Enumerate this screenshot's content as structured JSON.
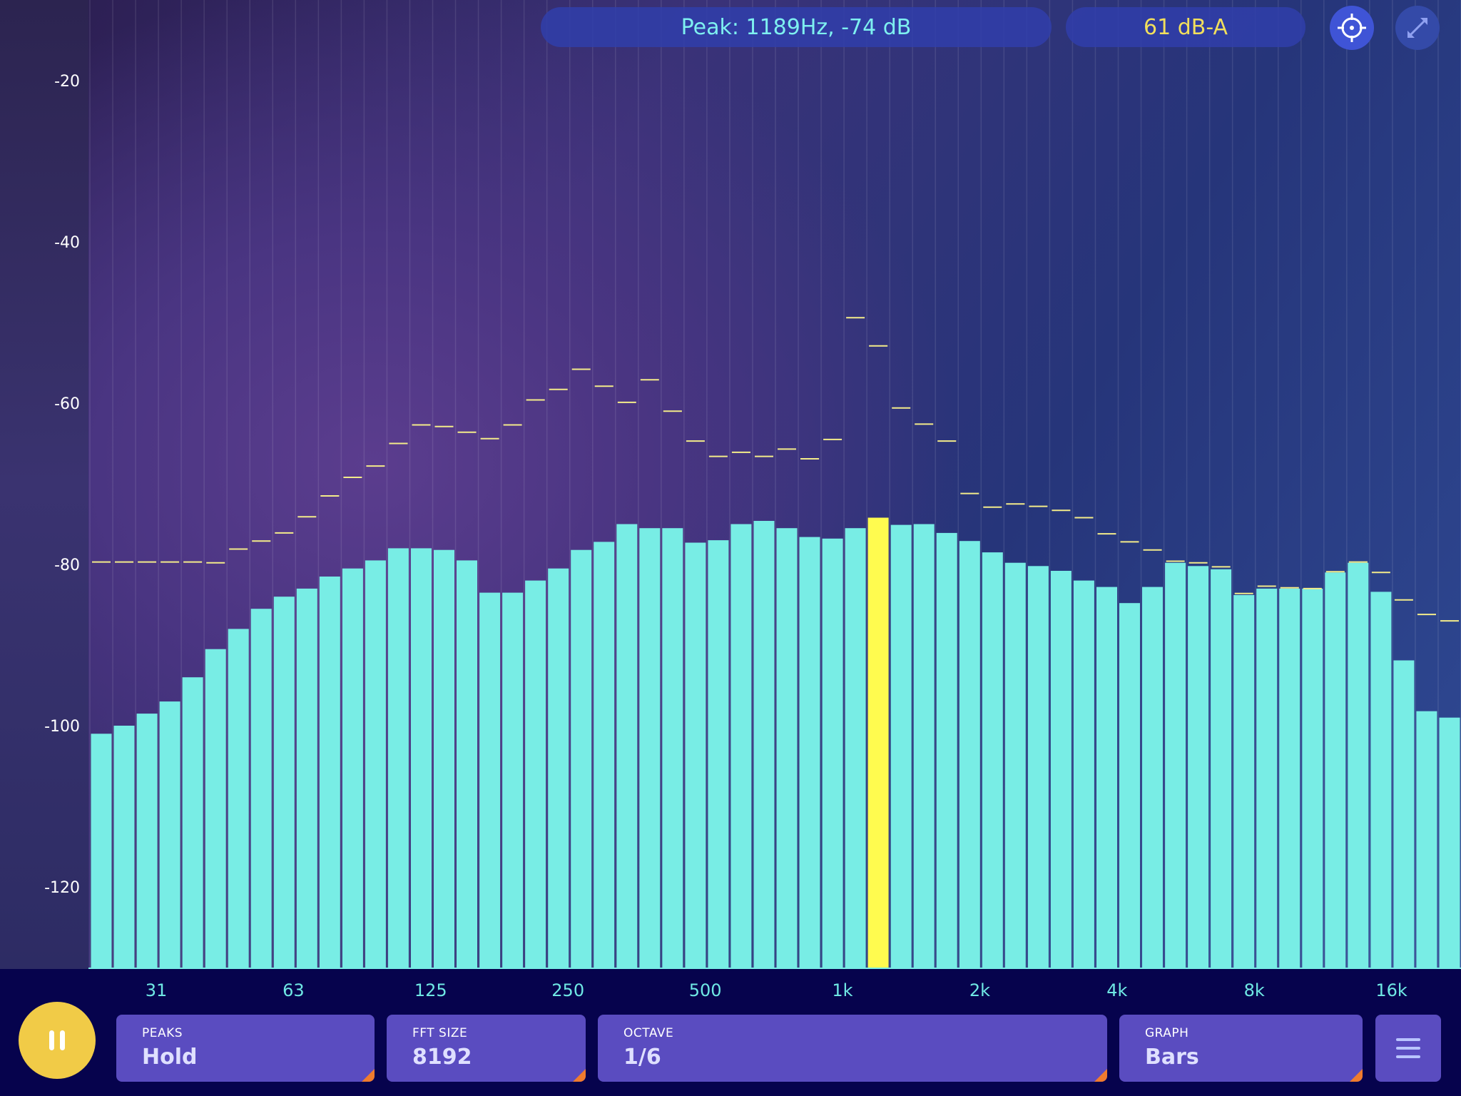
{
  "header": {
    "peak_readout": "Peak: 1189Hz, -74 dB",
    "level_readout": "61 dB-A"
  },
  "icons": {
    "target": "crosshair-target-icon",
    "expand": "expand-icon",
    "pause": "pause-icon",
    "menu": "hamburger-menu-icon"
  },
  "controls": {
    "peaks": {
      "caption": "PEAKS",
      "value": "Hold"
    },
    "fft_size": {
      "caption": "FFT SIZE",
      "value": "8192"
    },
    "octave": {
      "caption": "OCTAVE",
      "value": "1/6"
    },
    "graph": {
      "caption": "GRAPH",
      "value": "Bars"
    }
  },
  "colors": {
    "bar": "#78ede5",
    "highlight_bar": "#fffb4f",
    "peak_marker": "#f4ec8a",
    "play_button": "#f1cb47",
    "panel": "#5a4cc0",
    "panel_corner": "#f07b2e",
    "peak_text": "#7ef0f0",
    "level_text": "#f2df5c"
  },
  "chart_data": {
    "type": "bar",
    "x_scale": "log",
    "x_tick_labels": [
      "31",
      "63",
      "125",
      "250",
      "500",
      "1k",
      "2k",
      "4k",
      "8k",
      "16k"
    ],
    "y_tick_labels": [
      "-20",
      "-40",
      "-60",
      "-80",
      "-100",
      "-120"
    ],
    "ylim": [
      -130,
      -10
    ],
    "octave_fraction": "1/6",
    "highlight_index": 34,
    "values": [
      -101,
      -100,
      -98.5,
      -97,
      -94,
      -90.5,
      -88,
      -85.5,
      -84,
      -83,
      -81.5,
      -80.5,
      -79.5,
      -78,
      -78,
      -78.2,
      -79.5,
      -83.5,
      -83.5,
      -82,
      -80.5,
      -78.2,
      -77.2,
      -75,
      -75.5,
      -75.5,
      -77.3,
      -77,
      -75,
      -74.6,
      -75.5,
      -76.6,
      -76.8,
      -75.5,
      -74.2,
      -75.1,
      -75,
      -76.1,
      -77.1,
      -78.5,
      -79.8,
      -80.2,
      -80.8,
      -82,
      -82.8,
      -84.8,
      -82.8,
      -79.8,
      -80.2,
      -80.6,
      -83.8,
      -83,
      -83,
      -83,
      -81,
      -79.8,
      -83.4,
      -91.9,
      -98.2,
      -99
    ],
    "peak_hold": [
      -79.7,
      -79.7,
      -79.7,
      -79.7,
      -79.7,
      -79.8,
      -78.1,
      -77.1,
      -76.1,
      -74.1,
      -71.5,
      -69.2,
      -67.8,
      -65,
      -62.7,
      -62.9,
      -63.6,
      -64.4,
      -62.7,
      -59.6,
      -58.3,
      -55.8,
      -57.9,
      -59.9,
      -57.1,
      -61,
      -64.7,
      -66.6,
      -66.1,
      -66.6,
      -65.7,
      -66.9,
      -64.5,
      -49.4,
      -52.9,
      -60.6,
      -62.6,
      -64.7,
      -71.2,
      -72.9,
      -72.5,
      -72.8,
      -73.3,
      -74.2,
      -76.2,
      -77.2,
      -78.2,
      -79.6,
      -79.8,
      -80.3,
      -83.6,
      -82.7,
      -82.9,
      -83,
      -80.9,
      -79.7,
      -81,
      -84.4,
      -86.2,
      -87
    ]
  }
}
